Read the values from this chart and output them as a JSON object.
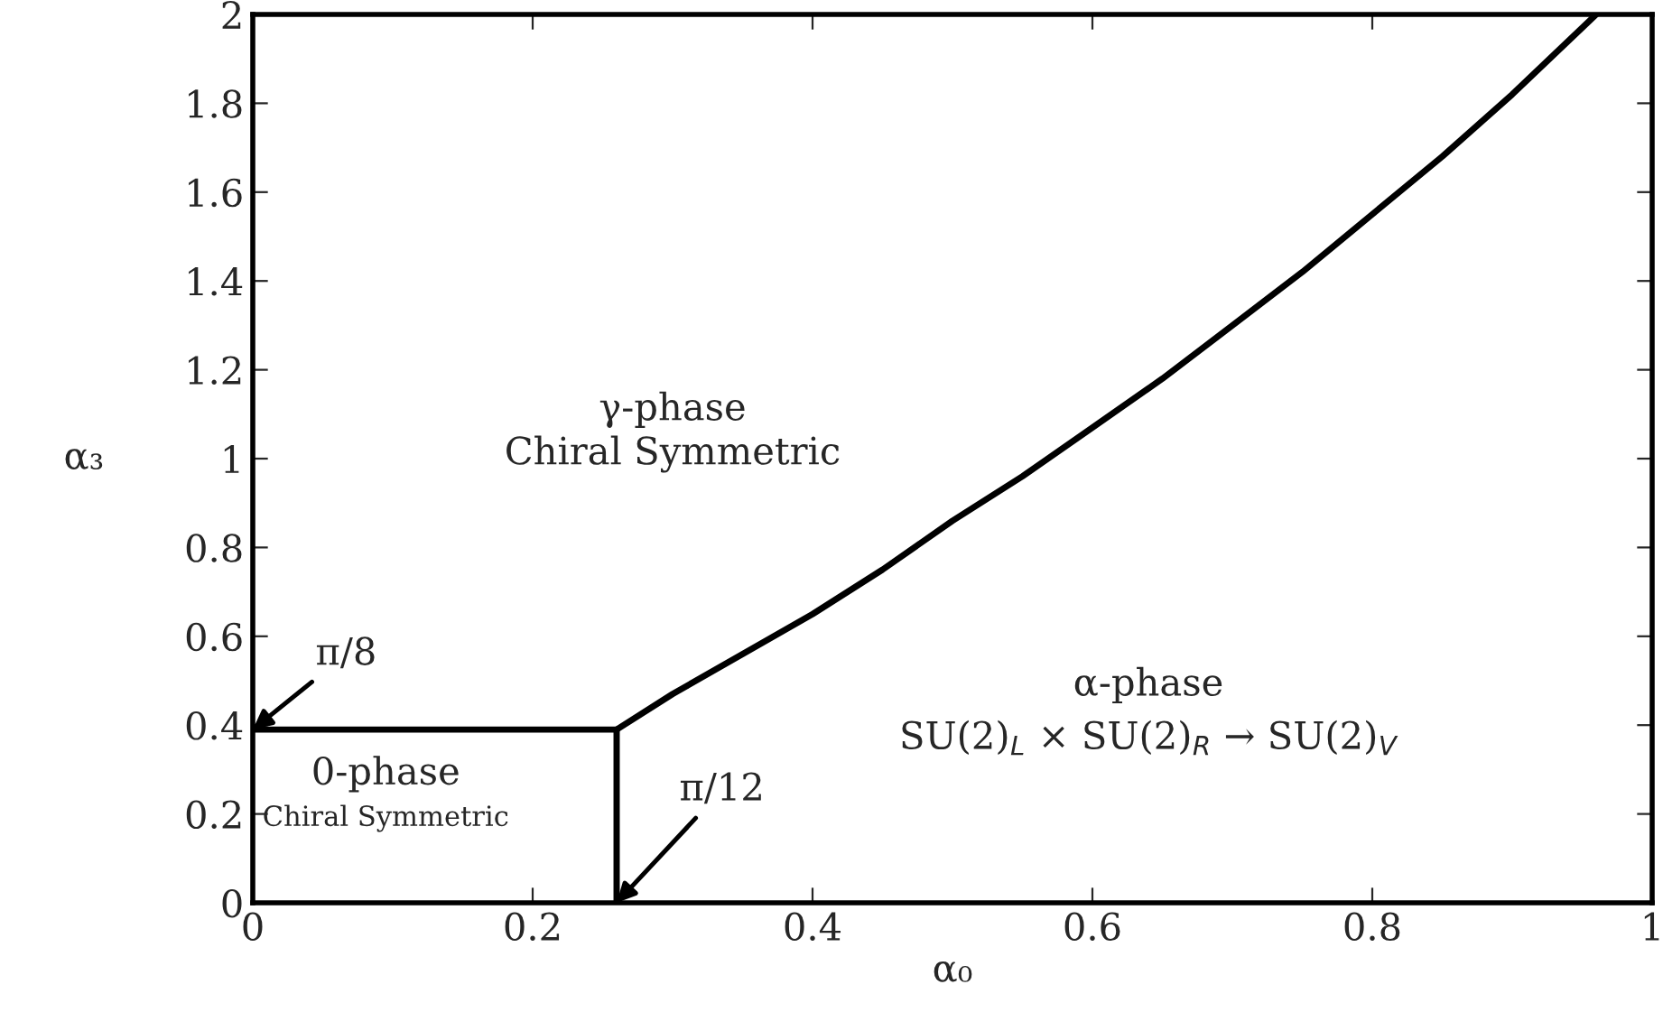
{
  "chart_data": {
    "type": "line",
    "xlabel": "α₀",
    "ylabel": "α₃",
    "xlim": [
      0,
      1
    ],
    "ylim": [
      0,
      2
    ],
    "xticks": [
      0,
      0.2,
      0.4,
      0.6,
      0.8,
      1
    ],
    "yticks": [
      0,
      0.2,
      0.4,
      0.6,
      0.8,
      1,
      1.2,
      1.4,
      1.6,
      1.8,
      2
    ],
    "grid": false,
    "legend": false,
    "series": [
      {
        "color": "#000000",
        "x": [
          0.26,
          0.3,
          0.35,
          0.4,
          0.45,
          0.5,
          0.55,
          0.6,
          0.65,
          0.7,
          0.75,
          0.8,
          0.85,
          0.9,
          0.96
        ],
        "values": [
          0.39,
          0.47,
          0.56,
          0.65,
          0.75,
          0.86,
          0.96,
          1.07,
          1.18,
          1.3,
          1.42,
          1.55,
          1.68,
          1.82,
          2.0
        ]
      },
      {
        "color": "#000000",
        "x": [
          0,
          0.26
        ],
        "values": [
          0.39,
          0.39
        ]
      },
      {
        "color": "#000000",
        "x": [
          0.26,
          0.26
        ],
        "values": [
          0,
          0.39
        ]
      }
    ],
    "annotations": [
      "γ-phase",
      "Chiral Symmetric",
      "0-phase",
      "Chiral Symmetric",
      "α-phase",
      "SU(2)$_{L}$ × SU(2)$_{R}$ → SU(2)$_{V}$",
      {
        "text": "π/8",
        "x": 0,
        "y": 0.39
      },
      {
        "text": "π/12",
        "x": 0.26,
        "y": 0
      }
    ]
  }
}
